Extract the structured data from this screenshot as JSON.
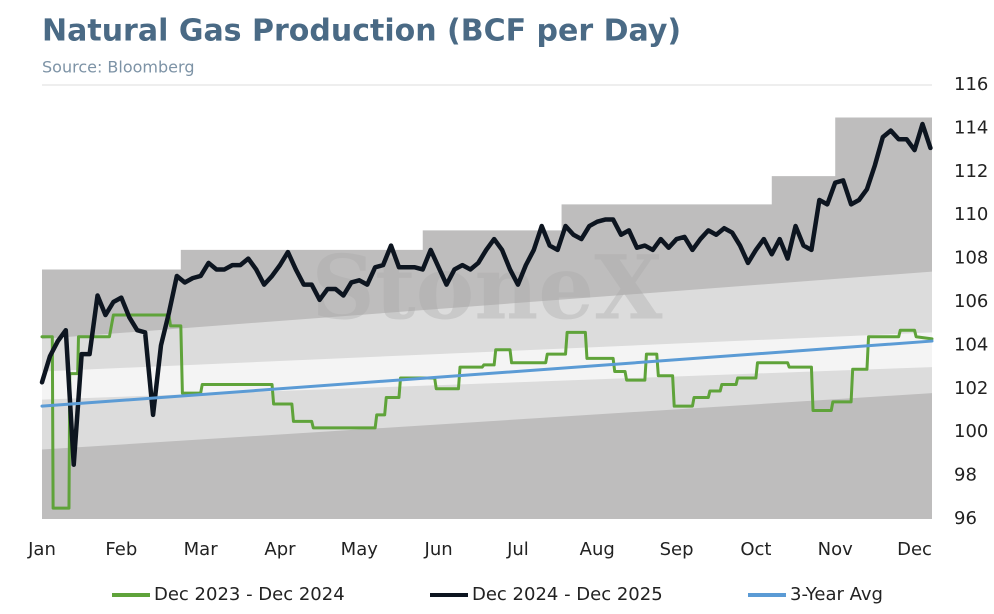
{
  "chart_data": {
    "type": "line",
    "title": "Natural Gas Production (BCF per Day)",
    "subtitle": "Source: Bloomberg",
    "watermark": "StoneX",
    "xlim": [
      0,
      11.22
    ],
    "xticks": [
      {
        "value": 0,
        "label": "Jan"
      },
      {
        "value": 1,
        "label": "Feb"
      },
      {
        "value": 2,
        "label": "Mar"
      },
      {
        "value": 3,
        "label": "Apr"
      },
      {
        "value": 4,
        "label": "May"
      },
      {
        "value": 5,
        "label": "Jun"
      },
      {
        "value": 6,
        "label": "Jul"
      },
      {
        "value": 7,
        "label": "Aug"
      },
      {
        "value": 8,
        "label": "Sep"
      },
      {
        "value": 9,
        "label": "Oct"
      },
      {
        "value": 10,
        "label": "Nov"
      },
      {
        "value": 11,
        "label": "Dec"
      }
    ],
    "ylim": [
      96,
      116
    ],
    "yticks": [
      96,
      98,
      100,
      102,
      104,
      106,
      108,
      110,
      112,
      114,
      116
    ],
    "legend": "bottom",
    "bands": [
      {
        "color": "#bebdbd",
        "x": [
          0,
          1.75,
          1.75,
          4.8,
          4.8,
          6.55,
          6.55,
          9.2,
          9.2,
          10.0,
          10.0,
          11.22
        ],
        "upper": [
          107.5,
          107.5,
          108.4,
          108.4,
          109.3,
          109.3,
          110.5,
          110.5,
          111.8,
          111.8,
          114.5,
          114.5
        ],
        "lower": [
          96,
          96,
          96,
          96,
          96,
          96,
          96,
          96,
          96,
          96,
          96,
          96
        ]
      },
      {
        "color": "#dcdcdc",
        "x": [
          0,
          11.22
        ],
        "upper": [
          104.3,
          107.4
        ],
        "lower": [
          99.2,
          101.8
        ]
      },
      {
        "color": "#f4f4f4",
        "x": [
          0,
          11.22
        ],
        "upper": [
          102.8,
          104.6
        ],
        "lower": [
          101.5,
          103.0
        ]
      }
    ],
    "series": [
      {
        "name": "Dec 2023 - Dec 2024",
        "color": "#5fa33a",
        "width": 3,
        "x": [
          0,
          0.13,
          0.14,
          0.34,
          0.35,
          0.45,
          0.46,
          0.85,
          0.9,
          1.6,
          1.62,
          1.75,
          1.77,
          2.0,
          2.02,
          2.9,
          2.92,
          3.15,
          3.17,
          3.4,
          3.42,
          4.2,
          4.22,
          4.32,
          4.34,
          4.5,
          4.52,
          4.95,
          4.97,
          5.25,
          5.27,
          5.55,
          5.57,
          5.7,
          5.72,
          5.9,
          5.92,
          6.35,
          6.37,
          6.6,
          6.62,
          6.85,
          6.87,
          7.2,
          7.22,
          7.35,
          7.37,
          7.6,
          7.62,
          7.75,
          7.77,
          7.95,
          7.97,
          8.2,
          8.22,
          8.4,
          8.42,
          8.55,
          8.57,
          8.75,
          8.77,
          9.0,
          9.02,
          9.4,
          9.42,
          9.7,
          9.72,
          9.95,
          9.97,
          10.2,
          10.22,
          10.4,
          10.42,
          10.8,
          10.82,
          11.0,
          11.02,
          11.22
        ],
        "values": [
          104.4,
          104.4,
          96.5,
          96.5,
          102.7,
          102.7,
          104.4,
          104.4,
          105.4,
          105.4,
          104.9,
          104.9,
          101.8,
          101.8,
          102.2,
          102.2,
          101.3,
          101.3,
          100.5,
          100.5,
          100.2,
          100.2,
          100.8,
          100.8,
          101.6,
          101.6,
          102.5,
          102.5,
          102.0,
          102.0,
          103.0,
          103.0,
          103.1,
          103.1,
          103.8,
          103.8,
          103.2,
          103.2,
          103.6,
          103.6,
          104.6,
          104.6,
          103.4,
          103.4,
          102.8,
          102.8,
          102.4,
          102.4,
          103.6,
          103.6,
          102.6,
          102.6,
          101.2,
          101.2,
          101.6,
          101.6,
          101.9,
          101.9,
          102.2,
          102.2,
          102.5,
          102.5,
          103.2,
          103.2,
          103.0,
          103.0,
          101.0,
          101.0,
          101.4,
          101.4,
          102.9,
          102.9,
          104.4,
          104.4,
          104.7,
          104.7,
          104.4,
          104.3
        ]
      },
      {
        "name": "Dec 2024 - Dec 2025",
        "color": "#0d1520",
        "width": 4.5,
        "x": [
          0,
          0.1,
          0.2,
          0.3,
          0.4,
          0.5,
          0.6,
          0.7,
          0.8,
          0.9,
          1.0,
          1.1,
          1.2,
          1.3,
          1.4,
          1.5,
          1.6,
          1.7,
          1.8,
          1.9,
          2.0,
          2.1,
          2.2,
          2.3,
          2.4,
          2.5,
          2.6,
          2.7,
          2.8,
          2.9,
          3.0,
          3.1,
          3.2,
          3.3,
          3.4,
          3.5,
          3.6,
          3.7,
          3.8,
          3.9,
          4.0,
          4.1,
          4.2,
          4.3,
          4.4,
          4.5,
          4.6,
          4.7,
          4.8,
          4.9,
          5.0,
          5.1,
          5.2,
          5.3,
          5.4,
          5.5,
          5.6,
          5.7,
          5.8,
          5.9,
          6.0,
          6.1,
          6.2,
          6.3,
          6.4,
          6.5,
          6.6,
          6.7,
          6.8,
          6.9,
          7.0,
          7.1,
          7.2,
          7.3,
          7.4,
          7.5,
          7.6,
          7.7,
          7.8,
          7.9,
          8.0,
          8.1,
          8.2,
          8.3,
          8.4,
          8.5,
          8.6,
          8.7,
          8.8,
          8.9,
          9.0,
          9.1,
          9.2,
          9.3,
          9.4,
          9.5,
          9.6,
          9.7,
          9.8,
          9.9,
          10.0,
          10.1,
          10.2,
          10.3,
          10.4,
          10.5,
          10.6,
          10.7,
          10.8,
          10.9,
          11.0,
          11.1,
          11.2
        ],
        "values": [
          102.3,
          103.5,
          104.2,
          104.7,
          98.5,
          103.6,
          103.6,
          106.3,
          105.4,
          106.0,
          106.2,
          105.3,
          104.7,
          104.6,
          100.8,
          104.0,
          105.5,
          107.2,
          106.9,
          107.1,
          107.2,
          107.8,
          107.5,
          107.5,
          107.7,
          107.7,
          108.0,
          107.5,
          106.8,
          107.2,
          107.7,
          108.3,
          107.5,
          106.8,
          106.8,
          106.1,
          106.6,
          106.6,
          106.3,
          106.9,
          107.0,
          106.8,
          107.6,
          107.7,
          108.6,
          107.6,
          107.6,
          107.6,
          107.5,
          108.4,
          107.6,
          106.8,
          107.5,
          107.7,
          107.5,
          107.8,
          108.4,
          108.9,
          108.4,
          107.5,
          106.8,
          107.7,
          108.4,
          109.5,
          108.6,
          108.4,
          109.5,
          109.1,
          108.9,
          109.5,
          109.7,
          109.8,
          109.8,
          109.1,
          109.3,
          108.5,
          108.6,
          108.4,
          108.9,
          108.5,
          108.9,
          109.0,
          108.4,
          108.9,
          109.3,
          109.1,
          109.4,
          109.2,
          108.6,
          107.8,
          108.4,
          108.9,
          108.2,
          108.9,
          108.0,
          109.5,
          108.6,
          108.4,
          110.7,
          110.5,
          111.5,
          111.6,
          110.5,
          110.7,
          111.2,
          112.3,
          113.6,
          113.9,
          113.5,
          113.5,
          113.0,
          114.2,
          113.1
        ]
      },
      {
        "name": "3-Year Avg",
        "color": "#5b9bd5",
        "width": 3,
        "x": [
          0,
          11.22
        ],
        "values": [
          101.2,
          104.2
        ]
      }
    ]
  }
}
